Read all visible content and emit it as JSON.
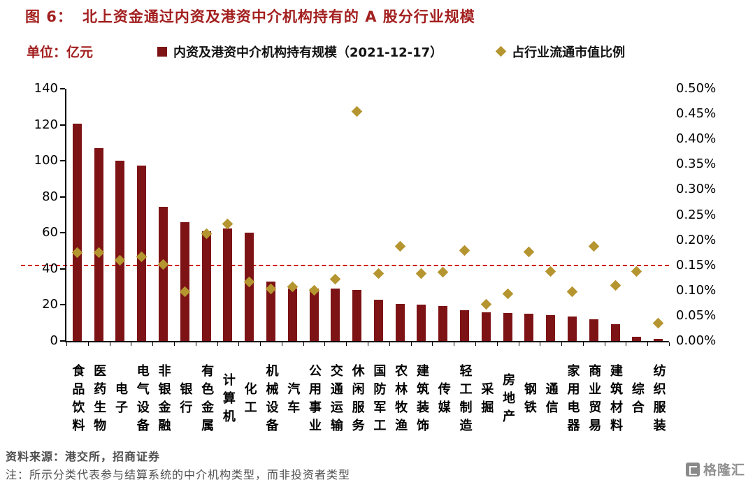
{
  "header": {
    "figure_label": "图 6：",
    "title": "北上资金通过内资及港资中介机构持有的 A 股分行业规模"
  },
  "legend": {
    "unit_label": "单位：亿元",
    "series1_label": "内资及港资中介机构持有规模（2021-12-17）",
    "series2_label": "占行业流通市值比例"
  },
  "footer": {
    "source": "资料来源：港交所，招商证券",
    "note": "注：所示分类代表参与结算系统的中介机构类型，而非投资者类型",
    "logo_text": "格隆汇"
  },
  "colors": {
    "bar": "#7d1315",
    "diamond": "#b5952f",
    "accent": "#a31f1f",
    "dashed_line": "#cf0a0a",
    "axis": "#000000"
  },
  "chart_data": {
    "type": "bar",
    "title": "北上资金通过内资及港资中介机构持有的 A 股分行业规模",
    "categories": [
      "食品饮料",
      "医药生物",
      "电子",
      "电气设备",
      "非银金融",
      "银行",
      "有色金属",
      "计算机",
      "化工",
      "机械设备",
      "汽车",
      "公用事业",
      "交通运输",
      "休闲服务",
      "国防军工",
      "农林牧渔",
      "建筑装饰",
      "传媒",
      "轻工制造",
      "采掘",
      "房地产",
      "钢铁",
      "通信",
      "家用电器",
      "商业贸易",
      "建筑材料",
      "综合",
      "纺织服装"
    ],
    "series": [
      {
        "name": "内资及港资中介机构持有规模（2021-12-17）",
        "type": "bar",
        "axis": "left",
        "unit": "亿元",
        "values": [
          120.5,
          107,
          100,
          97.5,
          74.5,
          66,
          61,
          62.5,
          60,
          33,
          29,
          29,
          29,
          28.5,
          23,
          20.5,
          20,
          19.5,
          17,
          16,
          15.5,
          15,
          14.5,
          13.5,
          12,
          9.5,
          2.5,
          1
        ]
      },
      {
        "name": "占行业流通市值比例",
        "type": "scatter",
        "axis": "right",
        "unit": "%",
        "values": [
          0.175,
          0.175,
          0.16,
          0.167,
          0.152,
          0.098,
          0.213,
          0.232,
          0.117,
          0.103,
          0.107,
          0.101,
          0.123,
          0.455,
          0.134,
          0.188,
          0.133,
          0.137,
          0.179,
          0.073,
          0.094,
          0.176,
          0.138,
          0.097,
          0.187,
          0.11,
          0.138,
          0.035
        ]
      }
    ],
    "left_axis": {
      "min": 0,
      "max": 140,
      "step": 20,
      "ticks": [
        "140",
        "120",
        "100",
        "80",
        "60",
        "40",
        "20",
        "0"
      ]
    },
    "right_axis": {
      "min": 0,
      "max": 0.5,
      "step": 0.05,
      "ticks": [
        "0.50%",
        "0.45%",
        "0.40%",
        "0.35%",
        "0.30%",
        "0.25%",
        "0.20%",
        "0.15%",
        "0.10%",
        "0.05%",
        "0.00%"
      ]
    },
    "reference_line": {
      "axis": "right",
      "value": 0.15,
      "style": "dashed"
    },
    "grid": false,
    "legend_position": "top"
  }
}
